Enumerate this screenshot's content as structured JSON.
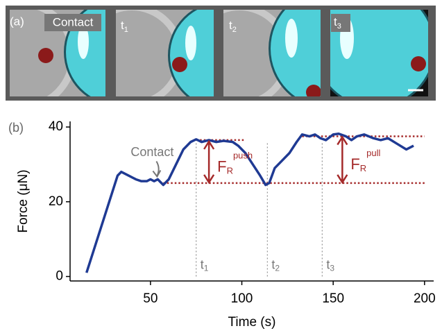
{
  "panel_a": {
    "label": "(a)",
    "image_labels": [
      {
        "text": "Contact"
      },
      {
        "text": "t",
        "subscript": "1"
      },
      {
        "text": "t",
        "subscript": "2"
      },
      {
        "text": "t",
        "subscript": "3"
      }
    ]
  },
  "chart_data": {
    "type": "line",
    "panel_label": "(b)",
    "x_label": "Time (s)",
    "y_label": "Force (μN)",
    "xlim": [
      6,
      205
    ],
    "ylim": [
      -1.2,
      41.5
    ],
    "xticks": [
      50,
      100,
      150,
      200
    ],
    "yticks": [
      0,
      20,
      40
    ],
    "series": [
      {
        "name": "Force",
        "color": "#1f3a93",
        "x": [
          15,
          32,
          34,
          38,
          42,
          45,
          48,
          50,
          52,
          54,
          56,
          57,
          60,
          64,
          68,
          72,
          75,
          78,
          82,
          86,
          90,
          95,
          98,
          102,
          106,
          110,
          113,
          115,
          118,
          122,
          126,
          130,
          133,
          137,
          140,
          143,
          146,
          150,
          153,
          157,
          160,
          163,
          167,
          172,
          176,
          180,
          185,
          190,
          194
        ],
        "values": [
          1,
          27,
          28,
          27,
          26,
          25.5,
          25.5,
          26,
          25.5,
          26,
          25,
          24.5,
          26,
          30,
          34,
          36,
          36.7,
          36,
          36.5,
          36,
          36.3,
          36,
          35,
          33,
          30,
          27,
          24.5,
          25,
          29,
          31,
          33,
          36,
          38,
          37.5,
          38,
          37,
          36.5,
          38,
          38.2,
          37.5,
          36.5,
          37.5,
          38,
          37,
          36.5,
          37,
          35.5,
          34,
          35
        ]
      }
    ],
    "hlines": [
      {
        "y": 36.5,
        "x": [
          75,
          101
        ]
      },
      {
        "y": 25,
        "x": [
          57,
          200
        ]
      },
      {
        "y": 37.5,
        "x": [
          133,
          200
        ]
      }
    ],
    "vlines": [
      {
        "x": 75,
        "label": "t",
        "subscript": "1"
      },
      {
        "x": 114,
        "label": "t",
        "subscript": "2"
      },
      {
        "x": 144,
        "label": "t",
        "subscript": "3"
      }
    ],
    "force_arrows": [
      {
        "x": 82,
        "from": 36.3,
        "to": 25,
        "text": "F",
        "subscript": "R",
        "superscript": "push"
      },
      {
        "x": 155,
        "from": 37.5,
        "to": 25,
        "text": "F",
        "subscript": "R",
        "superscript": "pull"
      }
    ],
    "contact_annotation": {
      "text": "Contact",
      "x": 54,
      "y": 26
    }
  }
}
